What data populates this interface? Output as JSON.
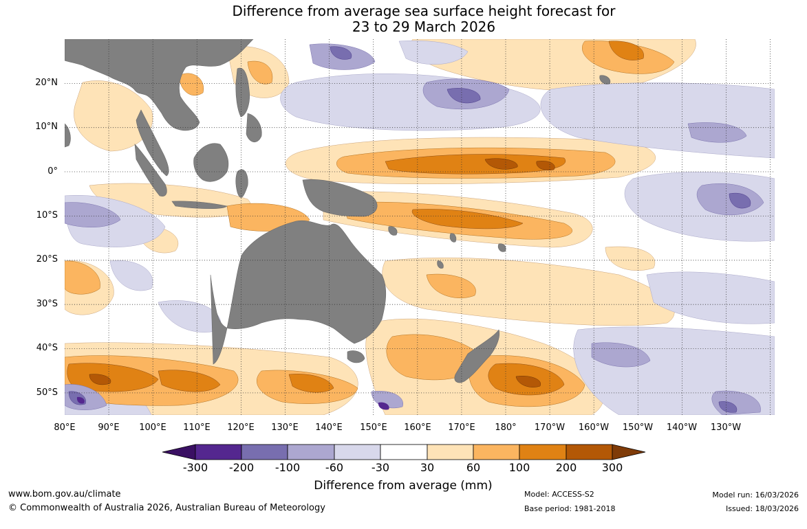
{
  "title": {
    "line1": "Difference from average sea surface height forecast for",
    "line2": "23 to 29 March 2026"
  },
  "map": {
    "extent": {
      "lon_min": 80,
      "lon_max": 241,
      "lat_min": -55,
      "lat_max": 30
    },
    "land_color": "#808080",
    "grid": "dotted",
    "lat_labels": [
      "20°N",
      "10°N",
      "0°",
      "10°S",
      "20°S",
      "30°S",
      "40°S",
      "50°S"
    ],
    "lon_labels": [
      "80°E",
      "90°E",
      "100°E",
      "110°E",
      "120°E",
      "130°E",
      "140°E",
      "150°E",
      "160°E",
      "170°E",
      "180°",
      "170°W",
      "160°W",
      "150°W",
      "140°W",
      "130°W"
    ]
  },
  "legend": {
    "title": "Difference from average (mm)",
    "tick_labels": [
      "-300",
      "-200",
      "-100",
      "-60",
      "-30",
      "30",
      "60",
      "100",
      "200",
      "300"
    ],
    "bins": [
      {
        "range": "< -300",
        "color": "#3a1063"
      },
      {
        "range": "-300 to -200",
        "color": "#54278f"
      },
      {
        "range": "-200 to -100",
        "color": "#786eaf"
      },
      {
        "range": "-100 to -60",
        "color": "#aca7d0"
      },
      {
        "range": "-60 to -30",
        "color": "#d8d8eb"
      },
      {
        "range": "-30 to 30",
        "color": "#ffffff"
      },
      {
        "range": "30 to 60",
        "color": "#fee3b7"
      },
      {
        "range": "60 to 100",
        "color": "#fbb560"
      },
      {
        "range": "100 to 200",
        "color": "#e08214"
      },
      {
        "range": "200 to 300",
        "color": "#b35806"
      },
      {
        "range": "> 300",
        "color": "#7f3b08"
      }
    ]
  },
  "footer": {
    "website": "www.bom.gov.au/climate",
    "copyright": "© Commonwealth of Australia 2026, Australian Bureau of Meteorology",
    "model": "Model: ACCESS-S2",
    "base_period": "Base period: 1981-2018",
    "model_run": "Model run: 16/03/2026",
    "issued": "Issued: 18/03/2026"
  }
}
